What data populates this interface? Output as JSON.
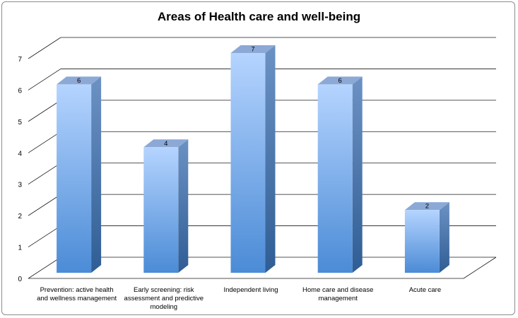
{
  "chart_data": {
    "type": "bar",
    "title": "Areas of Health care and well-being",
    "categories": [
      [
        "Prevention: active health",
        "and wellness management"
      ],
      [
        "Early screening: risk",
        "assessment and predictive",
        "modeling"
      ],
      [
        "Independent living"
      ],
      [
        "Home care and disease",
        "management"
      ],
      [
        "Acute care"
      ]
    ],
    "values": [
      6,
      4,
      7,
      6,
      2
    ],
    "data_labels": [
      "6",
      "4",
      "7",
      "6",
      "2"
    ],
    "ylim": [
      0,
      7
    ],
    "yticks": [
      "0",
      "1",
      "2",
      "3",
      "4",
      "5",
      "6",
      "7"
    ],
    "grid": true,
    "legend": "none",
    "style": "3d-column",
    "colors": {
      "bar_top": "#b5d4ff",
      "bar_bottom": "#4b8bd6",
      "bar_side": "#3f6ea8",
      "bar_cap": "#8ca9d6",
      "grid": "#1a1a1a",
      "frame": "#8c8c8c"
    }
  }
}
